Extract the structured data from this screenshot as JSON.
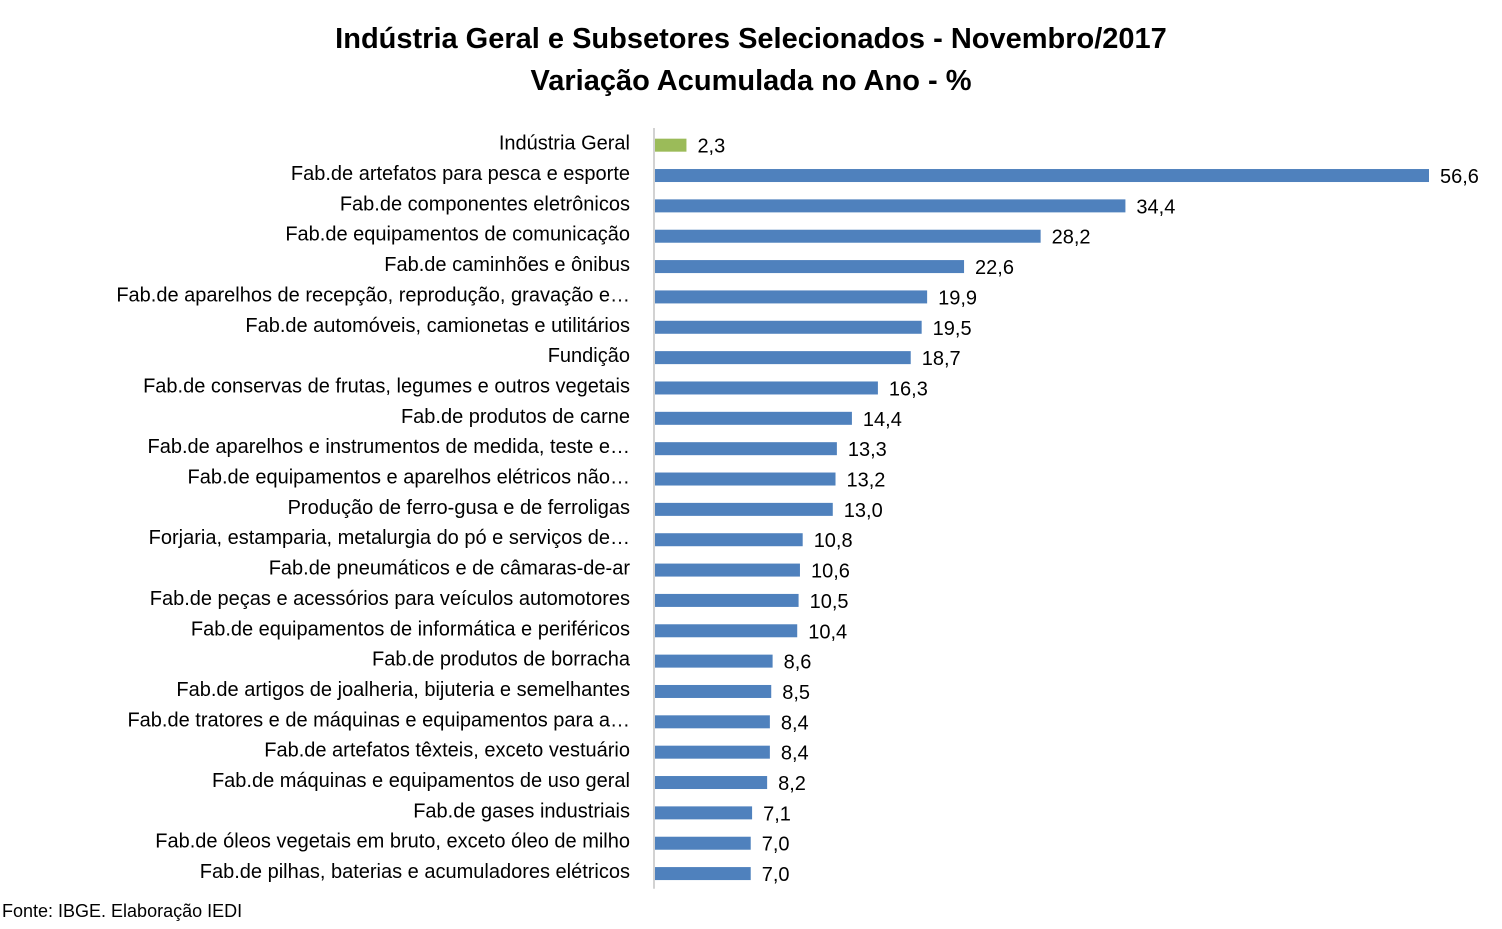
{
  "chart_data": {
    "type": "bar",
    "orientation": "horizontal",
    "title": "Indústria Geral e Subsetores Selecionados - Novembro/2017",
    "subtitle": "Variação Acumulada no Ano - %",
    "categories": [
      "Indústria Geral",
      "Fab.de artefatos para pesca e esporte",
      "Fab.de componentes eletrônicos",
      "Fab.de equipamentos de comunicação",
      "Fab.de caminhões e ônibus",
      "Fab.de aparelhos de recepção, reprodução, gravação e…",
      "Fab.de automóveis, camionetas e utilitários",
      "Fundição",
      "Fab.de conservas de frutas, legumes e outros vegetais",
      "Fab.de produtos de carne",
      "Fab.de aparelhos e instrumentos de medida, teste e…",
      "Fab.de equipamentos e aparelhos elétricos não…",
      "Produção de ferro-gusa e de ferroligas",
      "Forjaria, estamparia, metalurgia do pó e serviços de…",
      "Fab.de pneumáticos e de câmaras-de-ar",
      "Fab.de peças e acessórios para veículos automotores",
      "Fab.de equipamentos de informática e periféricos",
      "Fab.de produtos de borracha",
      "Fab.de artigos de joalheria, bijuteria e semelhantes",
      "Fab.de tratores e de máquinas e equipamentos para a…",
      "Fab.de artefatos têxteis, exceto vestuário",
      "Fab.de máquinas e equipamentos de uso geral",
      "Fab.de gases industriais",
      "Fab.de óleos vegetais em bruto, exceto óleo de milho",
      "Fab.de pilhas, baterias e acumuladores elétricos"
    ],
    "values": [
      2.3,
      56.6,
      34.4,
      28.2,
      22.6,
      19.9,
      19.5,
      18.7,
      16.3,
      14.4,
      13.3,
      13.2,
      13.0,
      10.8,
      10.6,
      10.5,
      10.4,
      8.6,
      8.5,
      8.4,
      8.4,
      8.2,
      7.1,
      7.0,
      7.0
    ],
    "value_labels": [
      "2,3",
      "56,6",
      "34,4",
      "28,2",
      "22,6",
      "19,9",
      "19,5",
      "18,7",
      "16,3",
      "14,4",
      "13,3",
      "13,2",
      "13,0",
      "10,8",
      "10,6",
      "10,5",
      "10,4",
      "8,6",
      "8,5",
      "8,4",
      "8,4",
      "8,2",
      "7,1",
      "7,0",
      "7,0"
    ],
    "xlim": [
      0,
      56.6
    ],
    "grid": false,
    "legend": "none",
    "colors": {
      "highlight": "#9bbb59",
      "default": "#4f81bd",
      "axis": "#a6a6a6"
    },
    "highlight_index": 0
  },
  "source": "Fonte: IBGE. Elaboração IEDI"
}
